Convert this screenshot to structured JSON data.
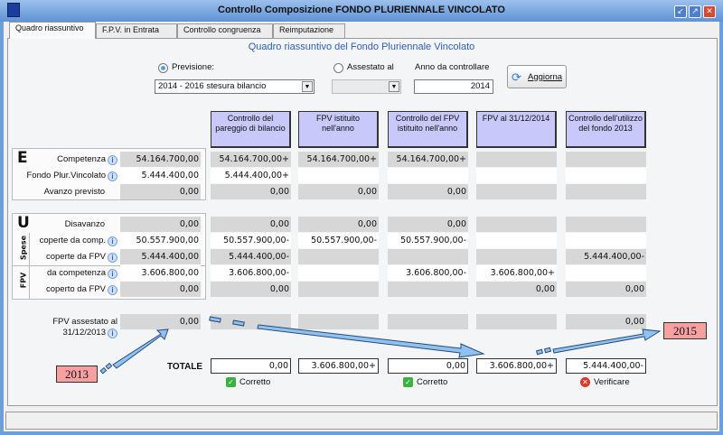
{
  "window": {
    "title": "Controllo Composizione FONDO PLURIENNALE VINCOLATO",
    "buttons": [
      "minimize",
      "maximize",
      "close"
    ]
  },
  "tabs": [
    {
      "label": "Quadro riassuntivo",
      "active": true
    },
    {
      "label": "F.P.V. in Entrata"
    },
    {
      "label": "Controllo congruenza"
    },
    {
      "label": "Reimputazione"
    }
  ],
  "heading": "Quadro riassuntivo del Fondo Pluriennale Vincolato",
  "filters": {
    "previsione_label": "Previsione:",
    "previsione_selected": true,
    "previsione_value": "2014 - 2016 stesura bilancio",
    "assestato_label": "Assestato al",
    "assestato_value": "",
    "anno_label": "Anno da controllare",
    "anno_value": "2014",
    "aggiorna_label": "Aggiorna"
  },
  "columns": [
    "Controllo del pareggio di bilancio",
    "FPV istituito nell'anno",
    "Controllo del FPV istituito nell'anno",
    "FPV al 31/12/2014",
    "Controllo dell'utilizzo del fondo 2013"
  ],
  "sections": {
    "entrate_letter": "E",
    "uscite_letter": "U",
    "spese_label": "Spese",
    "fpv_label": "FPV"
  },
  "rows": [
    {
      "label": "Competenza",
      "info": true,
      "value": "54.164.700,00",
      "cols": [
        "54.164.700,00+",
        "54.164.700,00+",
        "54.164.700,00+",
        "",
        ""
      ]
    },
    {
      "label": "Fondo Plur.Vincolato",
      "info": true,
      "value": "5.444.400,00",
      "cols": [
        "5.444.400,00+",
        "",
        "",
        "",
        ""
      ]
    },
    {
      "label": "Avanzo previsto",
      "info": false,
      "value": "0,00",
      "cols": [
        "0,00",
        "0,00",
        "0,00",
        "",
        ""
      ]
    },
    {
      "label": "Disavanzo",
      "info": false,
      "value": "0,00",
      "cols": [
        "0,00",
        "0,00",
        "0,00",
        "",
        ""
      ]
    },
    {
      "label": "coperte da comp.",
      "info": true,
      "value": "50.557.900,00",
      "cols": [
        "50.557.900,00-",
        "50.557.900,00-",
        "50.557.900,00-",
        "",
        ""
      ]
    },
    {
      "label": "coperte da FPV",
      "info": true,
      "value": "5.444.400,00",
      "cols": [
        "5.444.400,00-",
        "",
        "",
        "",
        "5.444.400,00-"
      ]
    },
    {
      "label": "da competenza",
      "info": true,
      "value": "3.606.800,00",
      "cols": [
        "3.606.800,00-",
        "",
        "3.606.800,00-",
        "3.606.800,00+",
        ""
      ]
    },
    {
      "label": "coperto da FPV",
      "info": true,
      "value": "0,00",
      "cols": [
        "0,00",
        "",
        "",
        "0,00",
        "0,00"
      ]
    },
    {
      "label": "FPV assestato al 31/12/2013",
      "info": true,
      "value": "0,00",
      "cols": [
        "",
        "",
        "",
        "",
        "0,00"
      ]
    }
  ],
  "totals": {
    "label": "TOTALE",
    "values": [
      "0,00",
      "3.606.800,00+",
      "0,00",
      "3.606.800,00+",
      "5.444.400,00-"
    ]
  },
  "checks": [
    {
      "label": "Corretto",
      "status": "ok"
    },
    {
      "label": "Corretto",
      "status": "ok"
    },
    {
      "label": "Verificare",
      "status": "error"
    }
  ],
  "annotations": {
    "year_start": "2013",
    "year_end": "2015"
  },
  "colors": {
    "header_fill": "#c8c8fb",
    "accent": "#2e5fb5",
    "annotation": "#f8a0a0",
    "arrow": "#8ec2f0"
  }
}
